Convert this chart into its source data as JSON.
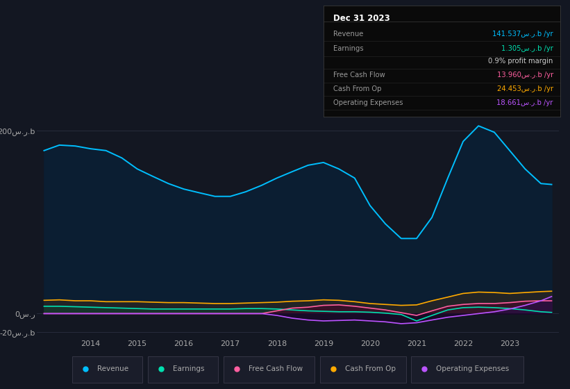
{
  "bg_color": "#131722",
  "plot_bg_color": "#131722",
  "years": [
    2013.0,
    2013.33,
    2013.67,
    2014.0,
    2014.33,
    2014.67,
    2015.0,
    2015.33,
    2015.67,
    2016.0,
    2016.33,
    2016.67,
    2017.0,
    2017.33,
    2017.67,
    2018.0,
    2018.33,
    2018.67,
    2019.0,
    2019.33,
    2019.67,
    2020.0,
    2020.33,
    2020.67,
    2021.0,
    2021.33,
    2021.67,
    2022.0,
    2022.33,
    2022.67,
    2023.0,
    2023.33,
    2023.67,
    2023.9
  ],
  "revenue": [
    178,
    184,
    183,
    180,
    178,
    170,
    158,
    150,
    142,
    136,
    132,
    128,
    128,
    133,
    140,
    148,
    155,
    162,
    165,
    158,
    148,
    118,
    98,
    82,
    82,
    105,
    148,
    188,
    205,
    198,
    178,
    158,
    142,
    141
  ],
  "earnings": [
    8,
    8,
    7.5,
    7,
    6.5,
    6,
    5.5,
    5,
    5,
    5,
    5,
    5,
    5,
    5.5,
    5.5,
    5,
    4,
    3,
    2.5,
    2,
    2,
    1.5,
    0.5,
    -1,
    -8,
    -2,
    4,
    6.5,
    7,
    6.5,
    5.5,
    4,
    2,
    1.3
  ],
  "cash_from_op": [
    14.5,
    15,
    14,
    14,
    13,
    13,
    13,
    12.5,
    12,
    12,
    11.5,
    11,
    11,
    11.5,
    12,
    12.5,
    13.5,
    14,
    15,
    14.5,
    13,
    11,
    10,
    9,
    9.5,
    14,
    18,
    22,
    23.5,
    23,
    22,
    23,
    24,
    24.45
  ],
  "free_cash_flow": [
    0,
    0,
    0,
    0,
    0,
    0,
    0,
    0,
    0,
    0,
    0,
    0,
    0,
    0,
    0,
    3,
    6,
    7,
    9,
    9.5,
    8,
    6,
    4,
    1,
    -2,
    3,
    8,
    10,
    11,
    11,
    12,
    13.5,
    14,
    13.96
  ],
  "op_expenses": [
    0,
    0,
    0,
    0,
    0,
    0,
    0,
    0,
    0,
    0,
    0,
    0,
    0,
    0,
    0,
    -2,
    -5,
    -7,
    -8,
    -7.5,
    -7,
    -8,
    -9,
    -11,
    -10,
    -7,
    -4,
    -2,
    0,
    2,
    5,
    9,
    14,
    18.66
  ],
  "ylim": [
    -25,
    215
  ],
  "yticks": [
    -20,
    0,
    200
  ],
  "ytick_labels": [
    "-20س.ر.b",
    "0س.ر",
    "200س.ر.b"
  ],
  "xticks": [
    2014,
    2015,
    2016,
    2017,
    2018,
    2019,
    2020,
    2021,
    2022,
    2023
  ],
  "legend": [
    {
      "label": "Revenue",
      "color": "#00bfff"
    },
    {
      "label": "Earnings",
      "color": "#00e0b0"
    },
    {
      "label": "Free Cash Flow",
      "color": "#ff5fa0"
    },
    {
      "label": "Cash From Op",
      "color": "#ffaa00"
    },
    {
      "label": "Operating Expenses",
      "color": "#bb55ff"
    }
  ],
  "revenue_color": "#00bfff",
  "earnings_color": "#00e0b0",
  "fcf_color": "#ff5fa0",
  "cashop_color": "#ffaa00",
  "opex_color": "#bb55ff",
  "grid_color": "#2a3040",
  "text_color": "#aaaaaa",
  "info_box": {
    "date": "Dec 31 2023",
    "rows": [
      {
        "label": "Revenue",
        "value": "141.537س.ر.b /yr",
        "value_color": "#00bfff"
      },
      {
        "label": "Earnings",
        "value": "1.305س.ر.b /yr",
        "value_color": "#00e0b0"
      },
      {
        "label": "",
        "value": "0.9% profit margin",
        "value_color": "#cccccc"
      },
      {
        "label": "Free Cash Flow",
        "value": "13.960س.ر.b /yr",
        "value_color": "#ff5fa0"
      },
      {
        "label": "Cash From Op",
        "value": "24.453س.ر.b /yr",
        "value_color": "#ffaa00"
      },
      {
        "label": "Operating Expenses",
        "value": "18.661س.ر.b /yr",
        "value_color": "#bb55ff"
      }
    ]
  }
}
